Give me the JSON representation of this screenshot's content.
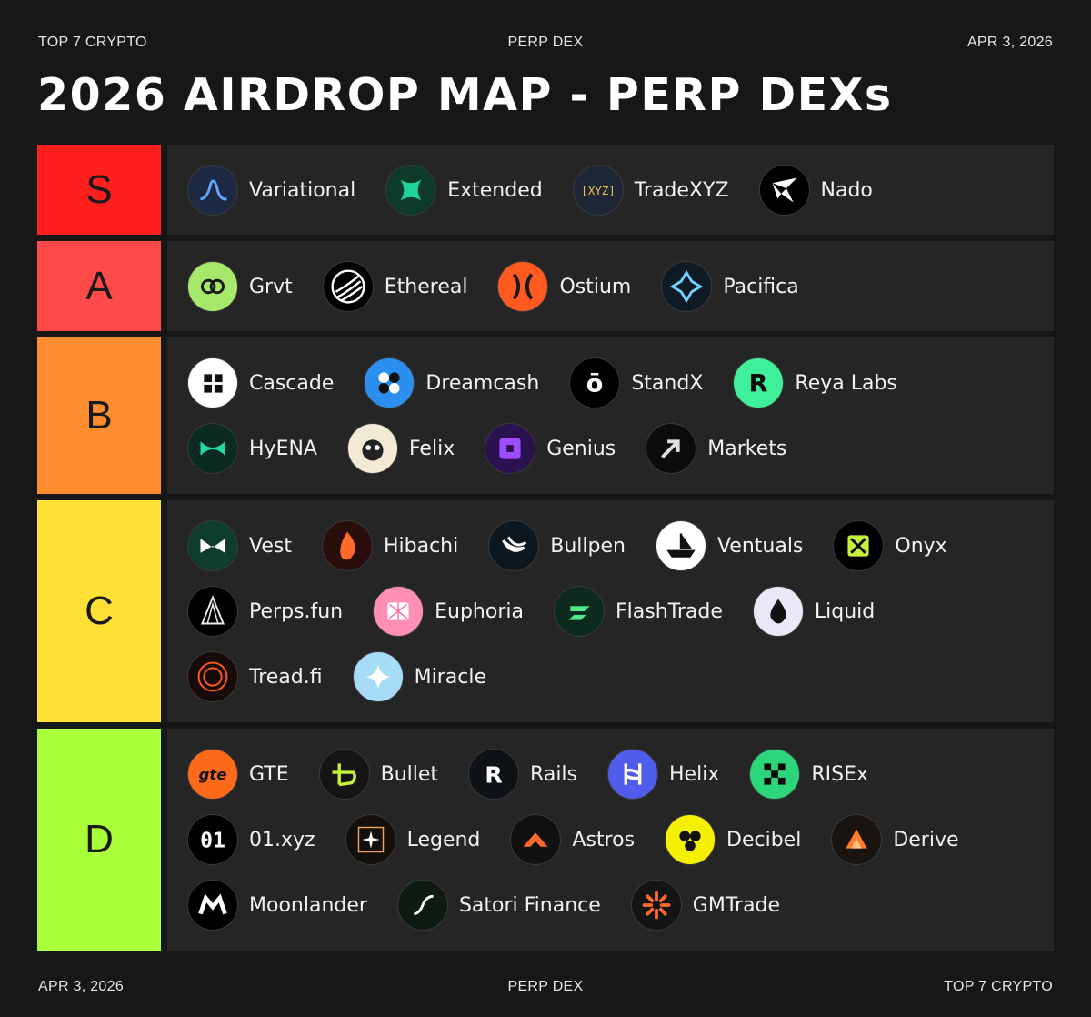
{
  "header": {
    "left": "TOP 7 CRYPTO",
    "center": "PERP DEX",
    "right": "APR 3, 2026"
  },
  "title": "2026 AIRDROP MAP - PERP DEXs",
  "footer": {
    "left": "APR 3, 2026",
    "center": "PERP DEX",
    "right": "TOP 7 CRYPTO"
  },
  "tiers": [
    {
      "label": "S",
      "color": "#ff1f1f",
      "rows": [
        [
          {
            "name": "Variational",
            "icon": "variational-icon",
            "bg": "#1e2a44"
          },
          {
            "name": "Extended",
            "icon": "extended-icon",
            "bg": "#0d3a2c"
          },
          {
            "name": "TradeXYZ",
            "icon": "tradexyz-icon",
            "bg": "#1f2636"
          },
          {
            "name": "Nado",
            "icon": "nado-icon",
            "bg": "#000000"
          }
        ]
      ]
    },
    {
      "label": "A",
      "color": "#ff4a4a",
      "rows": [
        [
          {
            "name": "Grvt",
            "icon": "grvt-icon",
            "bg": "#a6e86a"
          },
          {
            "name": "Ethereal",
            "icon": "ethereal-icon",
            "bg": "#000000"
          },
          {
            "name": "Ostium",
            "icon": "ostium-icon",
            "bg": "#ff5a1f"
          },
          {
            "name": "Pacifica",
            "icon": "pacifica-icon",
            "bg": "#0f1a24"
          }
        ]
      ]
    },
    {
      "label": "B",
      "color": "#ff8c2e",
      "rows": [
        [
          {
            "name": "Cascade",
            "icon": "cascade-icon",
            "bg": "#ffffff"
          },
          {
            "name": "Dreamcash",
            "icon": "dreamcash-icon",
            "bg": "#2b8ff0"
          },
          {
            "name": "StandX",
            "icon": "standx-icon",
            "bg": "#000000"
          },
          {
            "name": "Reya Labs",
            "icon": "reya-labs-icon",
            "bg": "#3ff09a"
          }
        ],
        [
          {
            "name": "HyENA",
            "icon": "hyena-icon",
            "bg": "#0b2a22"
          },
          {
            "name": "Felix",
            "icon": "felix-icon",
            "bg": "#f3ead6"
          },
          {
            "name": "Genius",
            "icon": "genius-icon",
            "bg": "#2a1250"
          },
          {
            "name": "Markets",
            "icon": "markets-icon",
            "bg": "#0c0c0c"
          }
        ]
      ]
    },
    {
      "label": "C",
      "color": "#ffe135",
      "rows": [
        [
          {
            "name": "Vest",
            "icon": "vest-icon",
            "bg": "#0f3d2b"
          },
          {
            "name": "Hibachi",
            "icon": "hibachi-icon",
            "bg": "#2a0e0e"
          },
          {
            "name": "Bullpen",
            "icon": "bullpen-icon",
            "bg": "#0d1720"
          },
          {
            "name": "Ventuals",
            "icon": "ventuals-icon",
            "bg": "#ffffff"
          },
          {
            "name": "Onyx",
            "icon": "onyx-icon",
            "bg": "#000000"
          }
        ],
        [
          {
            "name": "Perps.fun",
            "icon": "perps-fun-icon",
            "bg": "#000000"
          },
          {
            "name": "Euphoria",
            "icon": "euphoria-icon",
            "bg": "#ff8fb4"
          },
          {
            "name": "FlashTrade",
            "icon": "flashtrade-icon",
            "bg": "#0d2a1e"
          },
          {
            "name": "Liquid",
            "icon": "liquid-icon",
            "bg": "#ece7f6"
          }
        ],
        [
          {
            "name": "Tread.fi",
            "icon": "tread-fi-icon",
            "bg": "#160b08"
          },
          {
            "name": "Miracle",
            "icon": "miracle-icon",
            "bg": "#a7dcf6"
          }
        ]
      ]
    },
    {
      "label": "D",
      "color": "#a8ff3a",
      "rows": [
        [
          {
            "name": "GTE",
            "icon": "gte-icon",
            "bg": "#ff6a1a"
          },
          {
            "name": "Bullet",
            "icon": "bullet-icon",
            "bg": "#151515"
          },
          {
            "name": "Rails",
            "icon": "rails-icon",
            "bg": "#0e1116"
          },
          {
            "name": "Helix",
            "icon": "helix-icon",
            "bg": "#4f5dea"
          },
          {
            "name": "RISEx",
            "icon": "risex-icon",
            "bg": "#2cd67a"
          }
        ],
        [
          {
            "name": "01.xyz",
            "icon": "01-xyz-icon",
            "bg": "#000000"
          },
          {
            "name": "Legend",
            "icon": "legend-icon",
            "bg": "#120f0c"
          },
          {
            "name": "Astros",
            "icon": "astros-icon",
            "bg": "#111111"
          },
          {
            "name": "Decibel",
            "icon": "decibel-icon",
            "bg": "#f4f000"
          },
          {
            "name": "Derive",
            "icon": "derive-icon",
            "bg": "#1a1410"
          }
        ],
        [
          {
            "name": "Moonlander",
            "icon": "moonlander-icon",
            "bg": "#000000"
          },
          {
            "name": "Satori Finance",
            "icon": "satori-finance-icon",
            "bg": "#0e1a12"
          },
          {
            "name": "GMTrade",
            "icon": "gmtrade-icon",
            "bg": "#141414"
          }
        ]
      ]
    }
  ]
}
